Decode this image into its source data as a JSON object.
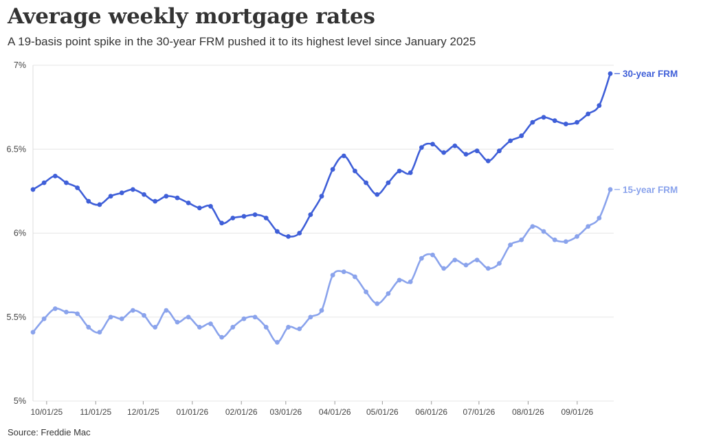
{
  "title": "Average weekly mortgage rates",
  "subtitle": "A 19-basis point spike in the 30-year FRM pushed it to its highest level since January 2025",
  "source": "Source: Freddie Mac",
  "chart_data": {
    "type": "line",
    "ylim": [
      5,
      7
    ],
    "yticks": [
      5,
      5.5,
      6,
      6.5,
      7
    ],
    "ytick_labels": [
      "5%",
      "5.5%",
      "6%",
      "6.5%",
      "7%"
    ],
    "xtick_labels": [
      "10/01/25",
      "11/01/25",
      "12/01/25",
      "01/01/26",
      "02/01/26",
      "03/01/26",
      "04/01/26",
      "05/01/26",
      "06/01/26",
      "07/01/26",
      "08/01/26",
      "09/01/26"
    ],
    "xtick_index": [
      1.23,
      5.65,
      9.93,
      14.35,
      18.77,
      22.77,
      27.19,
      31.47,
      35.89,
      40.17,
      44.6,
      49.02
    ],
    "grid": true,
    "colors": {
      "30-year FRM": "#3f5fd8",
      "15-year FRM": "#8aa3ec"
    },
    "series": [
      {
        "name": "30-year FRM",
        "values": [
          6.26,
          6.3,
          6.34,
          6.3,
          6.27,
          6.19,
          6.17,
          6.22,
          6.24,
          6.26,
          6.23,
          6.19,
          6.22,
          6.21,
          6.18,
          6.15,
          6.16,
          6.06,
          6.09,
          6.1,
          6.11,
          6.09,
          6.01,
          5.98,
          6.0,
          6.11,
          6.22,
          6.38,
          6.46,
          6.37,
          6.3,
          6.23,
          6.3,
          6.37,
          6.36,
          6.51,
          6.53,
          6.48,
          6.52,
          6.47,
          6.49,
          6.43,
          6.49,
          6.55,
          6.58,
          6.66,
          6.69,
          6.67,
          6.65,
          6.66,
          6.71,
          6.76,
          6.95
        ]
      },
      {
        "name": "15-year FRM",
        "values": [
          5.41,
          5.49,
          5.55,
          5.53,
          5.52,
          5.44,
          5.41,
          5.5,
          5.49,
          5.54,
          5.51,
          5.44,
          5.54,
          5.47,
          5.5,
          5.44,
          5.46,
          5.38,
          5.44,
          5.49,
          5.5,
          5.44,
          5.35,
          5.44,
          5.43,
          5.5,
          5.54,
          5.75,
          5.77,
          5.74,
          5.65,
          5.58,
          5.64,
          5.72,
          5.71,
          5.85,
          5.87,
          5.79,
          5.84,
          5.81,
          5.84,
          5.79,
          5.82,
          5.93,
          5.96,
          6.04,
          6.01,
          5.96,
          5.95,
          5.98,
          6.04,
          6.09,
          6.26
        ]
      }
    ]
  }
}
